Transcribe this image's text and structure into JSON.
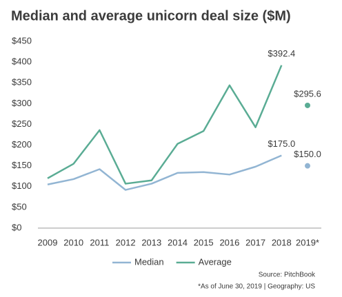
{
  "chart_data": {
    "type": "line",
    "title": "Median and average unicorn deal size ($M)",
    "categories": [
      "2009",
      "2010",
      "2011",
      "2012",
      "2013",
      "2014",
      "2015",
      "2016",
      "2017",
      "2018",
      "2019*"
    ],
    "series": [
      {
        "name": "Median",
        "color": "#92b5d3",
        "values": [
          105,
          118,
          142,
          92,
          107,
          133,
          135,
          129,
          148,
          175.0,
          150.0
        ],
        "value_labels": [
          null,
          null,
          null,
          null,
          null,
          null,
          null,
          null,
          null,
          "$175.0",
          "$150.0"
        ]
      },
      {
        "name": "Average",
        "color": "#5aac94",
        "values": [
          120,
          155,
          236,
          107,
          115,
          203,
          234,
          344,
          243,
          392.4,
          295.6
        ],
        "value_labels": [
          null,
          null,
          null,
          null,
          null,
          null,
          null,
          null,
          null,
          "$392.4",
          "$295.6"
        ]
      }
    ],
    "partial_last": true,
    "ylim": [
      0,
      450
    ],
    "yticks": [
      {
        "value": 0,
        "label": "$0"
      },
      {
        "value": 50,
        "label": "$50"
      },
      {
        "value": 100,
        "label": "$100"
      },
      {
        "value": 150,
        "label": "$150"
      },
      {
        "value": 200,
        "label": "$200"
      },
      {
        "value": 250,
        "label": "$250"
      },
      {
        "value": 300,
        "label": "$300"
      },
      {
        "value": 350,
        "label": "$350"
      },
      {
        "value": 400,
        "label": "$400"
      },
      {
        "value": 450,
        "label": "$450"
      }
    ],
    "legend": "bottom",
    "source": "Source: PitchBook",
    "footnote": "*As of June 30, 2019 | Geography: US"
  }
}
